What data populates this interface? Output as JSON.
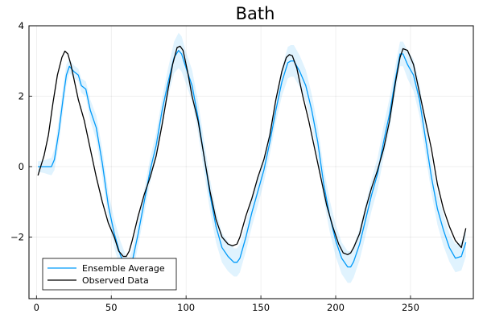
{
  "chart_data": {
    "type": "line",
    "title": "Bath",
    "xlabel": "",
    "ylabel": "",
    "xlim": [
      -5,
      292
    ],
    "ylim": [
      -3.75,
      4
    ],
    "xticks": [
      0,
      50,
      100,
      150,
      200,
      250
    ],
    "yticks": [
      -2,
      0,
      2,
      4
    ],
    "grid": true,
    "legend_position": "bottom-left",
    "series": [
      {
        "name": "Ensemble Average",
        "color": "#009af9",
        "band_color": "#009af9",
        "x": [
          1,
          5,
          10,
          12,
          15,
          18,
          20,
          22,
          25,
          28,
          30,
          33,
          36,
          40,
          44,
          48,
          52,
          56,
          60,
          62,
          64,
          68,
          72,
          76,
          80,
          84,
          88,
          92,
          95,
          97,
          100,
          104,
          108,
          112,
          116,
          120,
          124,
          128,
          132,
          134,
          136,
          140,
          144,
          148,
          152,
          156,
          160,
          164,
          168,
          170,
          172,
          176,
          180,
          184,
          188,
          192,
          196,
          200,
          204,
          208,
          210,
          212,
          216,
          220,
          224,
          228,
          232,
          236,
          240,
          243,
          245,
          248,
          252,
          256,
          260,
          264,
          268,
          272,
          276,
          280,
          284,
          287
        ],
        "y": [
          0.0,
          0.0,
          0.0,
          0.2,
          1.0,
          2.0,
          2.6,
          2.85,
          2.7,
          2.6,
          2.3,
          2.2,
          1.6,
          1.1,
          0.1,
          -1.1,
          -1.9,
          -2.5,
          -2.9,
          -2.95,
          -2.7,
          -1.9,
          -1.0,
          -0.1,
          0.6,
          1.6,
          2.4,
          3.1,
          3.3,
          3.2,
          2.8,
          2.3,
          1.4,
          0.3,
          -0.8,
          -1.7,
          -2.3,
          -2.55,
          -2.72,
          -2.72,
          -2.6,
          -2.0,
          -1.3,
          -0.7,
          -0.1,
          0.7,
          1.6,
          2.4,
          2.95,
          3.0,
          3.0,
          2.7,
          2.3,
          1.6,
          0.7,
          -0.5,
          -1.4,
          -2.1,
          -2.6,
          -2.85,
          -2.85,
          -2.7,
          -2.2,
          -1.5,
          -0.8,
          -0.2,
          0.7,
          1.5,
          2.5,
          3.2,
          3.2,
          2.9,
          2.6,
          1.9,
          0.8,
          -0.3,
          -1.2,
          -1.8,
          -2.3,
          -2.6,
          -2.55,
          -2.15
        ],
        "band_width": [
          0.15,
          0.18,
          0.25,
          0.3,
          0.35,
          0.35,
          0.3,
          0.2,
          0.18,
          0.18,
          0.2,
          0.22,
          0.3,
          0.35,
          0.4,
          0.4,
          0.4,
          0.4,
          0.35,
          0.35,
          0.35,
          0.35,
          0.35,
          0.35,
          0.35,
          0.35,
          0.4,
          0.45,
          0.5,
          0.5,
          0.45,
          0.45,
          0.45,
          0.45,
          0.45,
          0.45,
          0.42,
          0.42,
          0.4,
          0.4,
          0.4,
          0.4,
          0.4,
          0.4,
          0.35,
          0.35,
          0.35,
          0.4,
          0.45,
          0.45,
          0.45,
          0.45,
          0.45,
          0.45,
          0.45,
          0.45,
          0.45,
          0.45,
          0.45,
          0.45,
          0.45,
          0.45,
          0.45,
          0.45,
          0.45,
          0.45,
          0.45,
          0.45,
          0.4,
          0.35,
          0.35,
          0.4,
          0.45,
          0.45,
          0.45,
          0.45,
          0.45,
          0.45,
          0.4,
          0.4,
          0.4,
          0.4
        ]
      },
      {
        "name": "Observed Data",
        "color": "#000000",
        "x": [
          1,
          5,
          8,
          11,
          14,
          17,
          19,
          21,
          23,
          25,
          28,
          32,
          36,
          40,
          44,
          48,
          52,
          55,
          58,
          60,
          62,
          64,
          68,
          72,
          76,
          80,
          84,
          88,
          91,
          94,
          96,
          98,
          101,
          104,
          108,
          112,
          116,
          120,
          124,
          128,
          131,
          134,
          136,
          140,
          144,
          148,
          152,
          156,
          160,
          164,
          167,
          169,
          171,
          174,
          178,
          182,
          186,
          190,
          194,
          198,
          202,
          205,
          208,
          210,
          212,
          216,
          220,
          224,
          228,
          232,
          236,
          240,
          243,
          245,
          248,
          252,
          256,
          260,
          264,
          268,
          272,
          276,
          280,
          284,
          287
        ],
        "y": [
          -0.25,
          0.3,
          0.9,
          1.8,
          2.6,
          3.1,
          3.28,
          3.2,
          2.9,
          2.5,
          1.9,
          1.3,
          0.5,
          -0.3,
          -1.0,
          -1.6,
          -2.0,
          -2.4,
          -2.55,
          -2.55,
          -2.4,
          -2.1,
          -1.4,
          -0.8,
          -0.3,
          0.3,
          1.2,
          2.2,
          2.9,
          3.38,
          3.42,
          3.3,
          2.7,
          2.0,
          1.3,
          0.3,
          -0.7,
          -1.5,
          -2.0,
          -2.2,
          -2.25,
          -2.2,
          -2.0,
          -1.4,
          -0.9,
          -0.3,
          0.2,
          0.9,
          1.9,
          2.7,
          3.1,
          3.18,
          3.15,
          2.8,
          2.0,
          1.3,
          0.5,
          -0.3,
          -1.1,
          -1.7,
          -2.2,
          -2.45,
          -2.5,
          -2.45,
          -2.3,
          -1.9,
          -1.2,
          -0.6,
          -0.1,
          0.5,
          1.3,
          2.4,
          3.1,
          3.35,
          3.3,
          2.9,
          2.1,
          1.3,
          0.5,
          -0.5,
          -1.2,
          -1.7,
          -2.1,
          -2.3,
          -1.75
        ]
      }
    ]
  }
}
